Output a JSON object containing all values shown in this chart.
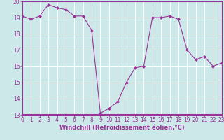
{
  "x": [
    0,
    1,
    2,
    3,
    4,
    5,
    6,
    7,
    8,
    9,
    10,
    11,
    12,
    13,
    14,
    15,
    16,
    17,
    18,
    19,
    20,
    21,
    22,
    23
  ],
  "y": [
    19.1,
    18.9,
    19.1,
    19.8,
    19.6,
    19.5,
    19.1,
    19.1,
    18.2,
    13.1,
    13.4,
    13.8,
    15.0,
    15.9,
    16.0,
    19.0,
    19.0,
    19.1,
    18.9,
    17.0,
    16.4,
    16.6,
    16.0,
    16.2
  ],
  "line_color": "#993399",
  "marker": "D",
  "marker_size": 2.0,
  "bg_color": "#cce8e8",
  "grid_color": "#ffffff",
  "xlabel": "Windchill (Refroidissement éolien,°C)",
  "xlabel_color": "#993399",
  "tick_color": "#993399",
  "ylim": [
    13,
    20
  ],
  "xlim": [
    0,
    23
  ],
  "yticks": [
    13,
    14,
    15,
    16,
    17,
    18,
    19,
    20
  ],
  "xticks": [
    0,
    1,
    2,
    3,
    4,
    5,
    6,
    7,
    8,
    9,
    10,
    11,
    12,
    13,
    14,
    15,
    16,
    17,
    18,
    19,
    20,
    21,
    22,
    23
  ],
  "tick_fontsize": 5.5,
  "xlabel_fontsize": 6.0,
  "spine_color": "#993399"
}
